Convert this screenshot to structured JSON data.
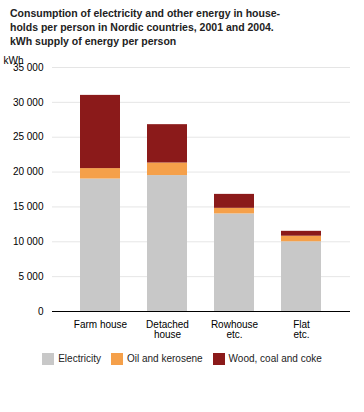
{
  "chart_data": {
    "type": "bar",
    "stacked": true,
    "title": "Consumption of electricity and other energy in house-\nholds per person in Nordic countries, 2001 and 2004.\nkWh supply of energy per person",
    "ylabel": "kWh",
    "categories": [
      "Farm house",
      "Detached\nhouse",
      "Rowhouse\netc.",
      "Flat\netc."
    ],
    "series": [
      {
        "name": "Electricity",
        "color": "#c8c8c8",
        "values": [
          19000,
          19500,
          14000,
          10000
        ]
      },
      {
        "name": "Oil and kerosene",
        "color": "#f5a04a",
        "values": [
          1500,
          1800,
          800,
          800
        ]
      },
      {
        "name": "Wood, coal and coke",
        "color": "#8b1a1a",
        "values": [
          10500,
          5500,
          2000,
          700
        ]
      }
    ],
    "ylim": [
      0,
      35000
    ],
    "yticks": [
      0,
      {
        "value": 5000,
        "label": "5 000"
      },
      {
        "value": 10000,
        "label": "10 000"
      },
      {
        "value": 15000,
        "label": "15 000"
      },
      {
        "value": 20000,
        "label": "20 000"
      },
      {
        "value": 25000,
        "label": "25 000"
      },
      {
        "value": 30000,
        "label": "30 000"
      },
      {
        "value": 35000,
        "label": "35 000"
      }
    ],
    "grid": true,
    "legend": "bottom"
  }
}
